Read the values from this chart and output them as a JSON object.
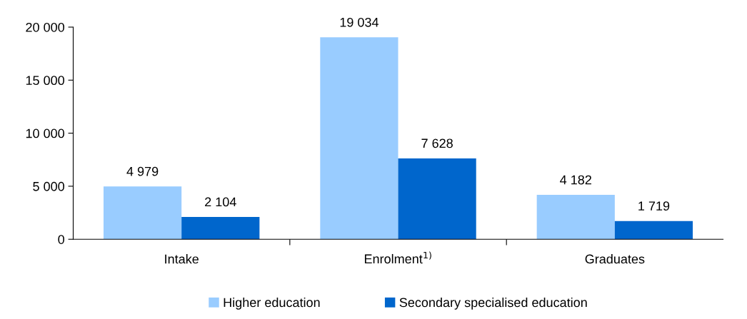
{
  "chart_data": {
    "type": "bar",
    "categories": [
      "Intake",
      "Enrolment$^{1)}$",
      "Graduates"
    ],
    "series": [
      {
        "name": "Higher education",
        "color": "#99ccff",
        "values": [
          4979,
          19034,
          4182
        ],
        "value_labels": [
          "4 979",
          "19 034",
          "4 182"
        ]
      },
      {
        "name": "Secondary specialised education",
        "color": "#0066cc",
        "values": [
          2104,
          7628,
          1719
        ],
        "value_labels": [
          "2 104",
          "7 628",
          "1 719"
        ]
      }
    ],
    "ylim": [
      0,
      20000
    ],
    "yticks": [
      0,
      {
        "value": 5000,
        "label": "5 000"
      },
      {
        "value": 10000,
        "label": "10 000"
      },
      {
        "value": 15000,
        "label": "15 000"
      },
      {
        "value": 20000,
        "label": "20 000"
      }
    ],
    "grid": false,
    "legend": "bottom"
  }
}
